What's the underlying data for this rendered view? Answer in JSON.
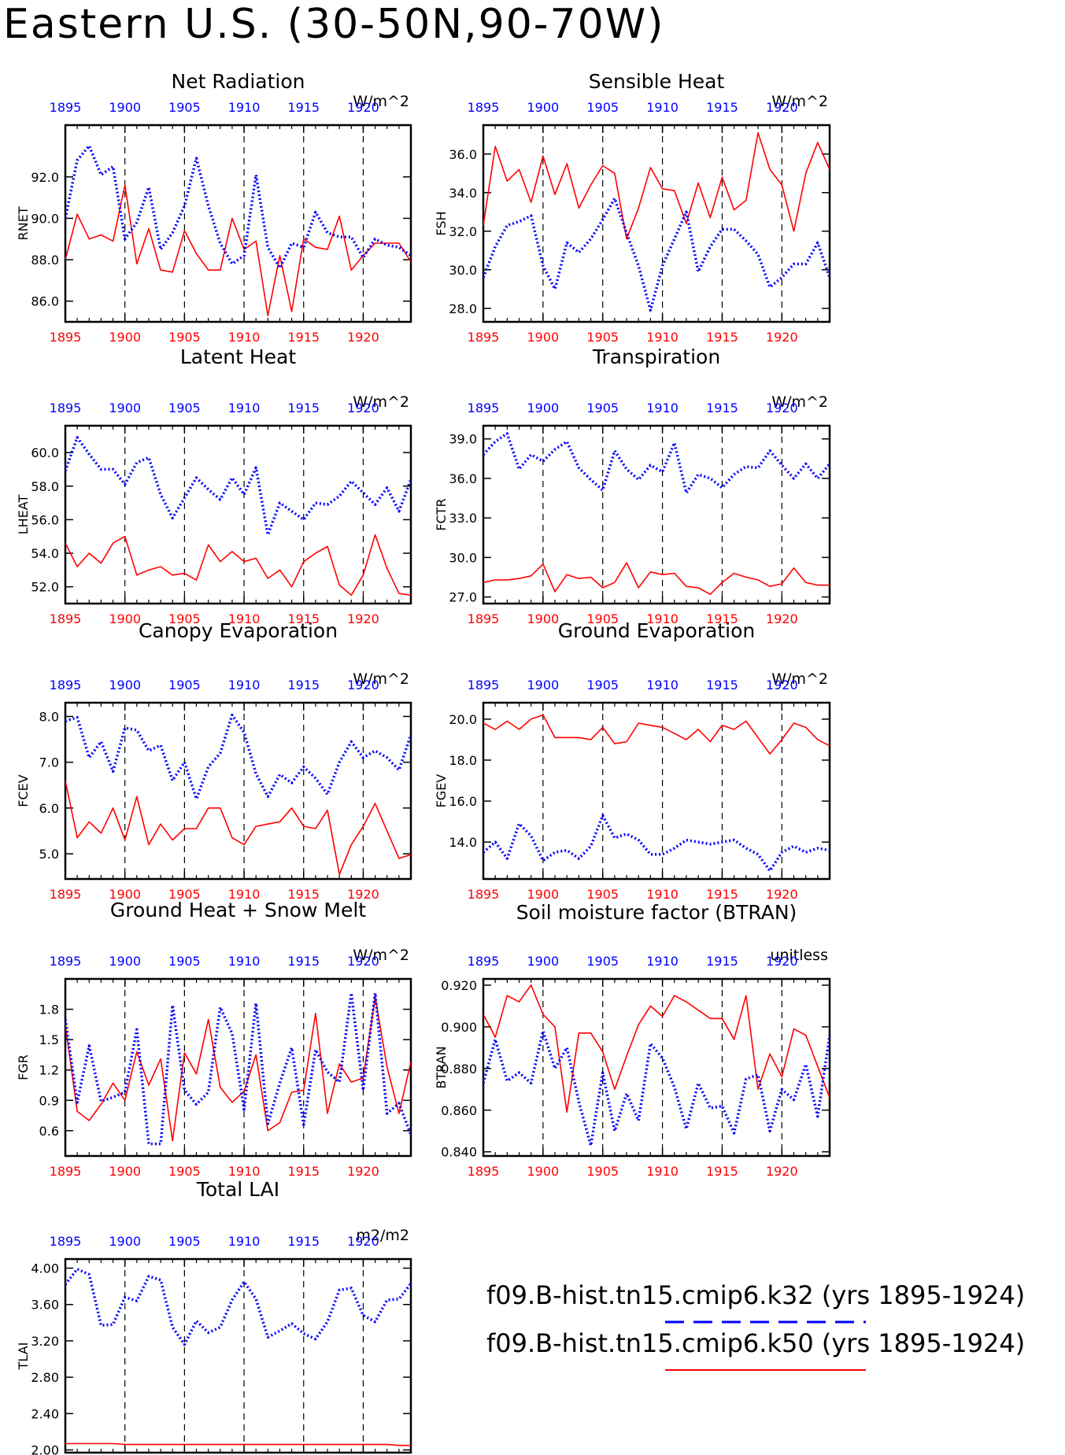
{
  "title": "Eastern U.S. (30-50N,90-70W)",
  "colors": {
    "series_a": "#0000ff",
    "series_b": "#ff0000",
    "axis": "#000000"
  },
  "legend": {
    "series_a": "f09.B-hist.tn15.cmip6.k32 (yrs 1895-1924)",
    "series_b": "f09.B-hist.tn15.cmip6.k50 (yrs 1895-1924)"
  },
  "chart_data": [
    {
      "type": "line",
      "title": "Net Radiation",
      "ylabel": "RNET",
      "units": "W/m^2",
      "xlim": [
        1895,
        1924
      ],
      "xticks": [
        1895,
        1900,
        1905,
        1910,
        1915,
        1920
      ],
      "xgrid": [
        1900,
        1905,
        1910,
        1915,
        1920
      ],
      "ylim": [
        85.0,
        94.5
      ],
      "yticks": [
        "86.0",
        "88.0",
        "90.0",
        "92.0"
      ],
      "series": [
        {
          "values": [
            90.0,
            92.8,
            93.5,
            92.1,
            92.5,
            89.0,
            89.8,
            91.5,
            88.5,
            89.3,
            90.6,
            92.9,
            90.6,
            88.8,
            87.8,
            88.2,
            92.1,
            88.6,
            87.6,
            88.8,
            88.6,
            90.3,
            89.3,
            89.1,
            89.1,
            88.1,
            89.0,
            88.7,
            88.6,
            88.2
          ]
        },
        {
          "values": [
            88.0,
            90.2,
            89.0,
            89.2,
            88.9,
            91.6,
            87.8,
            89.5,
            87.5,
            87.4,
            89.4,
            88.3,
            87.5,
            87.5,
            90.0,
            88.5,
            88.9,
            85.3,
            88.2,
            85.5,
            89.0,
            88.6,
            88.5,
            90.1,
            87.5,
            88.2,
            88.8,
            88.8,
            88.8,
            87.9
          ]
        }
      ]
    },
    {
      "type": "line",
      "title": "Sensible Heat",
      "ylabel": "FSH",
      "units": "W/m^2",
      "xlim": [
        1895,
        1924
      ],
      "xticks": [
        1895,
        1900,
        1905,
        1910,
        1915,
        1920
      ],
      "xgrid": [
        1900,
        1905,
        1910,
        1915,
        1920
      ],
      "ylim": [
        27.3,
        37.5
      ],
      "yticks": [
        "28.0",
        "30.0",
        "32.0",
        "34.0",
        "36.0"
      ],
      "series": [
        {
          "values": [
            29.6,
            31.2,
            32.3,
            32.5,
            32.8,
            30.2,
            29.0,
            31.4,
            30.9,
            31.6,
            32.6,
            33.7,
            31.9,
            30.2,
            27.9,
            30.2,
            31.6,
            33.0,
            29.9,
            31.2,
            32.1,
            32.1,
            31.5,
            30.8,
            29.1,
            29.6,
            30.3,
            30.3,
            31.4,
            29.6
          ]
        },
        {
          "values": [
            32.3,
            36.4,
            34.6,
            35.2,
            33.5,
            35.9,
            33.9,
            35.5,
            33.2,
            34.4,
            35.4,
            35.0,
            31.6,
            33.2,
            35.3,
            34.2,
            34.1,
            32.4,
            34.5,
            32.7,
            34.8,
            33.1,
            33.6,
            37.1,
            35.2,
            34.4,
            32.0,
            35.0,
            36.6,
            35.2
          ]
        }
      ]
    },
    {
      "type": "line",
      "title": "Latent Heat",
      "ylabel": "LHEAT",
      "units": "W/m^2",
      "xlim": [
        1895,
        1924
      ],
      "xticks": [
        1895,
        1900,
        1905,
        1910,
        1915,
        1920
      ],
      "xgrid": [
        1900,
        1905,
        1910,
        1915,
        1920
      ],
      "ylim": [
        51.0,
        61.6
      ],
      "yticks": [
        "52.0",
        "54.0",
        "56.0",
        "58.0",
        "60.0"
      ],
      "series": [
        {
          "values": [
            58.9,
            60.9,
            59.9,
            59.0,
            59.0,
            58.1,
            59.4,
            59.7,
            57.5,
            56.1,
            57.3,
            58.5,
            57.8,
            57.2,
            58.5,
            57.5,
            59.1,
            55.1,
            57.0,
            56.5,
            56.0,
            57.0,
            56.9,
            57.4,
            58.3,
            57.6,
            56.9,
            57.9,
            56.5,
            58.4
          ]
        },
        {
          "values": [
            54.6,
            53.2,
            54.0,
            53.4,
            54.6,
            55.0,
            52.7,
            53.0,
            53.2,
            52.7,
            52.8,
            52.4,
            54.5,
            53.5,
            54.1,
            53.5,
            53.7,
            52.5,
            53.0,
            52.0,
            53.5,
            54.0,
            54.4,
            52.1,
            51.5,
            52.7,
            55.1,
            53.1,
            51.6,
            51.5
          ]
        }
      ]
    },
    {
      "type": "line",
      "title": "Transpiration",
      "ylabel": "FCTR",
      "units": "W/m^2",
      "xlim": [
        1895,
        1924
      ],
      "xticks": [
        1895,
        1900,
        1905,
        1910,
        1915,
        1920
      ],
      "xgrid": [
        1900,
        1905,
        1910,
        1915,
        1920
      ],
      "ylim": [
        26.5,
        40.0
      ],
      "yticks": [
        "27.0",
        "30.0",
        "33.0",
        "36.0",
        "39.0"
      ],
      "series": [
        {
          "values": [
            37.8,
            38.8,
            39.4,
            36.7,
            37.8,
            37.3,
            38.2,
            38.8,
            36.8,
            35.9,
            35.1,
            38.1,
            36.7,
            35.9,
            37.0,
            36.5,
            38.7,
            34.9,
            36.3,
            36.0,
            35.3,
            36.3,
            36.9,
            36.8,
            38.1,
            37.0,
            36.0,
            37.1,
            36.0,
            37.1
          ]
        },
        {
          "values": [
            28.1,
            28.3,
            28.3,
            28.4,
            28.6,
            29.5,
            27.4,
            28.7,
            28.4,
            28.5,
            27.7,
            28.1,
            29.6,
            27.7,
            28.9,
            28.7,
            28.8,
            27.8,
            27.7,
            27.2,
            28.1,
            28.8,
            28.5,
            28.3,
            27.8,
            28.0,
            29.2,
            28.1,
            27.9,
            27.9
          ]
        }
      ]
    },
    {
      "type": "line",
      "title": "Canopy Evaporation",
      "ylabel": "FCEV",
      "units": "W/m^2",
      "xlim": [
        1895,
        1924
      ],
      "xticks": [
        1895,
        1900,
        1905,
        1910,
        1915,
        1920
      ],
      "xgrid": [
        1900,
        1905,
        1910,
        1915,
        1920
      ],
      "ylim": [
        4.45,
        8.3
      ],
      "yticks": [
        "5.0",
        "6.0",
        "7.0",
        "8.0"
      ],
      "series": [
        {
          "values": [
            7.9,
            7.98,
            7.1,
            7.45,
            6.8,
            7.75,
            7.7,
            7.25,
            7.37,
            6.6,
            7.0,
            6.2,
            6.9,
            7.2,
            8.03,
            7.65,
            6.75,
            6.25,
            6.73,
            6.55,
            6.9,
            6.65,
            6.3,
            7.0,
            7.45,
            7.1,
            7.25,
            7.1,
            6.83,
            7.6
          ]
        },
        {
          "values": [
            6.6,
            5.35,
            5.7,
            5.45,
            6.0,
            5.3,
            6.25,
            5.2,
            5.65,
            5.3,
            5.55,
            5.55,
            6.0,
            6.0,
            5.35,
            5.2,
            5.6,
            5.65,
            5.7,
            6.0,
            5.6,
            5.55,
            5.95,
            4.55,
            5.2,
            5.6,
            6.1,
            5.5,
            4.9,
            4.98
          ]
        }
      ]
    },
    {
      "type": "line",
      "title": "Ground Evaporation",
      "ylabel": "FGEV",
      "units": "W/m^2",
      "xlim": [
        1895,
        1924
      ],
      "xticks": [
        1895,
        1900,
        1905,
        1910,
        1915,
        1920
      ],
      "xgrid": [
        1900,
        1905,
        1910,
        1915,
        1920
      ],
      "ylim": [
        12.2,
        20.8
      ],
      "yticks": [
        "14.0",
        "16.0",
        "18.0",
        "20.0"
      ],
      "series": [
        {
          "values": [
            13.5,
            14.0,
            13.2,
            14.9,
            14.3,
            13.1,
            13.5,
            13.6,
            13.2,
            13.8,
            15.3,
            14.2,
            14.4,
            14.1,
            13.4,
            13.4,
            13.7,
            14.1,
            14.0,
            13.9,
            14.0,
            14.1,
            13.7,
            13.4,
            12.6,
            13.5,
            13.8,
            13.5,
            13.7,
            13.6
          ]
        },
        {
          "values": [
            19.8,
            19.5,
            19.9,
            19.5,
            20.0,
            20.2,
            19.1,
            19.1,
            19.1,
            19.0,
            19.6,
            18.8,
            18.9,
            19.8,
            19.7,
            19.6,
            19.3,
            19.0,
            19.5,
            18.9,
            19.7,
            19.5,
            19.9,
            19.1,
            18.3,
            19.0,
            19.8,
            19.6,
            19.0,
            18.7
          ]
        }
      ]
    },
    {
      "type": "line",
      "title": "Ground Heat + Snow Melt",
      "ylabel": "FGR",
      "units": "W/m^2",
      "xlim": [
        1895,
        1924
      ],
      "xticks": [
        1895,
        1900,
        1905,
        1910,
        1915,
        1920
      ],
      "xgrid": [
        1900,
        1905,
        1910,
        1915,
        1920
      ],
      "ylim": [
        0.35,
        2.1
      ],
      "yticks": [
        "0.6",
        "0.9",
        "1.2",
        "1.5",
        "1.8"
      ],
      "series": [
        {
          "values": [
            1.7,
            0.88,
            1.44,
            0.89,
            0.93,
            0.98,
            1.6,
            0.47,
            0.47,
            1.84,
            1.0,
            0.86,
            0.98,
            1.82,
            1.56,
            0.81,
            1.86,
            0.67,
            1.07,
            1.42,
            0.66,
            1.4,
            1.18,
            1.08,
            1.96,
            1.0,
            1.96,
            0.77,
            0.87,
            0.56
          ]
        },
        {
          "values": [
            1.65,
            0.79,
            0.7,
            0.86,
            1.07,
            0.9,
            1.38,
            1.05,
            1.31,
            0.5,
            1.37,
            1.16,
            1.7,
            1.03,
            0.88,
            0.99,
            1.35,
            0.6,
            0.68,
            0.98,
            1.0,
            1.76,
            0.77,
            1.26,
            1.08,
            1.12,
            1.92,
            1.23,
            0.77,
            1.28
          ]
        }
      ]
    },
    {
      "type": "line",
      "title": "Soil moisture factor (BTRAN)",
      "ylabel": "BTRAN",
      "units": "unitless",
      "xlim": [
        1895,
        1924
      ],
      "xticks": [
        1895,
        1900,
        1905,
        1910,
        1915,
        1920
      ],
      "xgrid": [
        1900,
        1905,
        1910,
        1915,
        1920
      ],
      "ylim": [
        0.838,
        0.923
      ],
      "yticks": [
        "0.840",
        "0.860",
        "0.880",
        "0.900",
        "0.920"
      ],
      "series": [
        {
          "values": [
            0.873,
            0.894,
            0.874,
            0.878,
            0.873,
            0.898,
            0.88,
            0.89,
            0.864,
            0.843,
            0.878,
            0.85,
            0.868,
            0.855,
            0.892,
            0.885,
            0.871,
            0.851,
            0.873,
            0.861,
            0.862,
            0.849,
            0.875,
            0.877,
            0.85,
            0.87,
            0.865,
            0.882,
            0.857,
            0.896
          ]
        },
        {
          "values": [
            0.906,
            0.895,
            0.915,
            0.912,
            0.92,
            0.906,
            0.9,
            0.859,
            0.897,
            0.897,
            0.888,
            0.87,
            0.886,
            0.901,
            0.91,
            0.905,
            0.915,
            0.912,
            0.908,
            0.904,
            0.904,
            0.894,
            0.915,
            0.87,
            0.887,
            0.876,
            0.899,
            0.896,
            0.881,
            0.866
          ]
        }
      ]
    },
    {
      "type": "line",
      "title": "Total LAI",
      "ylabel": "TLAI",
      "units": "m2/m2",
      "xlim": [
        1895,
        1924
      ],
      "xticks": [
        1895,
        1900,
        1905,
        1910,
        1915,
        1920
      ],
      "xgrid": [
        1900,
        1905,
        1910,
        1915,
        1920
      ],
      "ylim": [
        1.97,
        4.1
      ],
      "yticks": [
        "2.00",
        "2.40",
        "2.80",
        "3.20",
        "3.60",
        "4.00"
      ],
      "series": [
        {
          "values": [
            3.82,
            3.99,
            3.93,
            3.37,
            3.38,
            3.68,
            3.64,
            3.91,
            3.87,
            3.35,
            3.16,
            3.42,
            3.29,
            3.35,
            3.65,
            3.85,
            3.66,
            3.24,
            3.31,
            3.39,
            3.28,
            3.22,
            3.41,
            3.76,
            3.78,
            3.48,
            3.41,
            3.65,
            3.66,
            3.83
          ]
        },
        {
          "values": [
            2.07,
            2.07,
            2.07,
            2.07,
            2.07,
            2.06,
            2.06,
            2.06,
            2.06,
            2.06,
            2.06,
            2.06,
            2.06,
            2.06,
            2.06,
            2.06,
            2.06,
            2.06,
            2.06,
            2.06,
            2.06,
            2.06,
            2.06,
            2.06,
            2.06,
            2.06,
            2.06,
            2.06,
            2.05,
            2.05
          ]
        }
      ]
    }
  ]
}
